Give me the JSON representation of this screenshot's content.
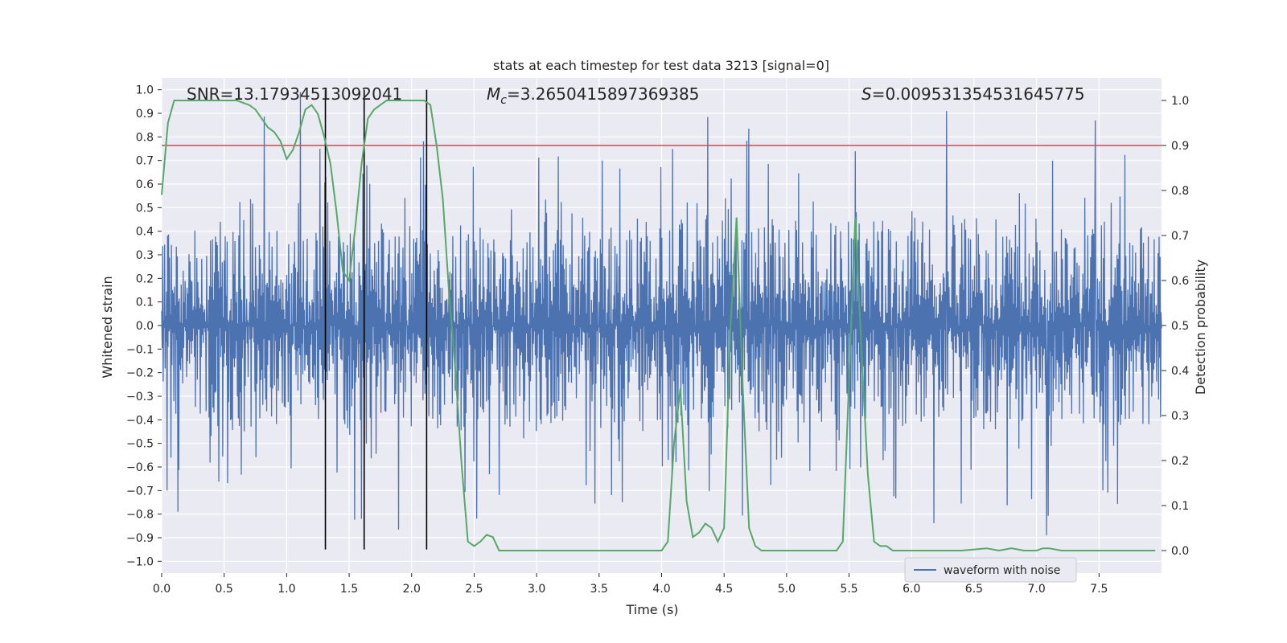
{
  "chart_data": {
    "type": "line",
    "title": "stats at each timestep for test data 3213 [signal=0]",
    "xlabel": "Time (s)",
    "ylabel_left": "Whitened strain",
    "ylabel_right": "Detection probability",
    "xlim": [
      0,
      8.0
    ],
    "ylim_left": [
      -1.05,
      1.05
    ],
    "ylim_right": [
      -0.05,
      1.05
    ],
    "x_ticks": [
      0.0,
      0.5,
      1.0,
      1.5,
      2.0,
      2.5,
      3.0,
      3.5,
      4.0,
      4.5,
      5.0,
      5.5,
      6.0,
      6.5,
      7.0,
      7.5
    ],
    "x_tick_labels": [
      "0.0",
      "0.5",
      "1.0",
      "1.5",
      "2.0",
      "2.5",
      "3.0",
      "3.5",
      "4.0",
      "4.5",
      "5.0",
      "5.5",
      "6.0",
      "6.5",
      "7.0",
      "7.5"
    ],
    "y_ticks_left": [
      1.0,
      0.9,
      0.8,
      0.7,
      0.6,
      0.5,
      0.4,
      0.3,
      0.2,
      0.1,
      0.0,
      -0.1,
      -0.2,
      -0.3,
      -0.4,
      -0.5,
      -0.6,
      -0.7,
      -0.8,
      -0.9,
      -1.0
    ],
    "y_tick_labels_left": [
      "1.0",
      "0.9",
      "0.8",
      "0.7",
      "0.6",
      "0.5",
      "0.4",
      "0.3",
      "0.2",
      "0.1",
      "0.0",
      "−0.1",
      "−0.2",
      "−0.3",
      "−0.4",
      "−0.5",
      "−0.6",
      "−0.7",
      "−0.8",
      "−0.9",
      "−1.0"
    ],
    "y_ticks_right": [
      1.0,
      0.9,
      0.8,
      0.7,
      0.6,
      0.5,
      0.4,
      0.3,
      0.2,
      0.1,
      0.0
    ],
    "y_tick_labels_right": [
      "1.0",
      "0.9",
      "0.8",
      "0.7",
      "0.6",
      "0.5",
      "0.4",
      "0.3",
      "0.2",
      "0.1",
      "0.0"
    ],
    "annotations": {
      "snr": "SNR=13.17934513092041",
      "mc_symbol": "M",
      "mc_sub": "c",
      "mc_value": "=3.2650415897369385",
      "s_symbol": "S",
      "s_value": "=0.009531354531645775"
    },
    "threshold": {
      "axis": "right",
      "value": 0.9,
      "color": "#c44e52"
    },
    "vertical_lines": {
      "x": [
        1.31,
        1.62,
        2.12
      ],
      "color": "#000000"
    },
    "series": [
      {
        "name": "waveform with noise",
        "axis": "left",
        "color": "#4c72b0",
        "envelope": {
          "core_abs": 0.2,
          "typical_max": 0.45,
          "peak_max": 0.97,
          "duration": 8.0,
          "n_samples": 2048
        },
        "notable_peaks": [
          {
            "x": 1.11,
            "y": 0.99
          },
          {
            "x": 1.62,
            "y": -0.93
          },
          {
            "x": 6.28,
            "y": 0.91
          },
          {
            "x": 7.47,
            "y": 0.87
          },
          {
            "x": 7.08,
            "y": -0.89
          },
          {
            "x": 0.13,
            "y": -0.79
          }
        ]
      },
      {
        "name": "detection probability",
        "axis": "right",
        "color": "#55a868",
        "x": [
          0.0,
          0.05,
          0.1,
          0.2,
          0.3,
          0.4,
          0.5,
          0.6,
          0.7,
          0.75,
          0.8,
          0.85,
          0.9,
          0.95,
          1.0,
          1.05,
          1.1,
          1.15,
          1.2,
          1.25,
          1.3,
          1.35,
          1.4,
          1.45,
          1.5,
          1.55,
          1.6,
          1.65,
          1.7,
          1.75,
          1.8,
          1.85,
          1.9,
          1.95,
          2.0,
          2.05,
          2.1,
          2.15,
          2.2,
          2.25,
          2.3,
          2.35,
          2.4,
          2.45,
          2.5,
          2.55,
          2.6,
          2.65,
          2.7,
          2.8,
          3.0,
          3.5,
          3.8,
          3.9,
          4.0,
          4.05,
          4.1,
          4.15,
          4.2,
          4.25,
          4.3,
          4.35,
          4.4,
          4.45,
          4.5,
          4.55,
          4.6,
          4.65,
          4.7,
          4.75,
          4.8,
          4.85,
          4.9,
          5.0,
          5.1,
          5.2,
          5.3,
          5.35,
          5.4,
          5.45,
          5.5,
          5.55,
          5.6,
          5.65,
          5.7,
          5.75,
          5.8,
          5.85,
          5.9,
          6.0,
          6.2,
          6.4,
          6.6,
          6.7,
          6.8,
          6.9,
          7.0,
          7.05,
          7.1,
          7.2,
          7.4,
          7.6,
          7.8,
          7.95
        ],
        "values": [
          0.79,
          0.95,
          1.0,
          1.0,
          1.0,
          1.0,
          1.0,
          1.0,
          0.99,
          0.98,
          0.96,
          0.94,
          0.93,
          0.91,
          0.87,
          0.89,
          0.93,
          0.98,
          0.99,
          0.97,
          0.92,
          0.86,
          0.75,
          0.62,
          0.6,
          0.72,
          0.86,
          0.96,
          0.98,
          0.99,
          1.0,
          1.0,
          1.0,
          1.0,
          1.0,
          1.0,
          1.0,
          0.99,
          0.9,
          0.78,
          0.57,
          0.4,
          0.19,
          0.02,
          0.01,
          0.02,
          0.035,
          0.03,
          0.0,
          0.0,
          0.0,
          0.0,
          0.0,
          0.0,
          0.0,
          0.02,
          0.24,
          0.36,
          0.11,
          0.03,
          0.04,
          0.06,
          0.05,
          0.02,
          0.05,
          0.49,
          0.74,
          0.36,
          0.05,
          0.01,
          0.0,
          0.0,
          0.0,
          0.0,
          0.0,
          0.0,
          0.0,
          0.0,
          0.0,
          0.02,
          0.38,
          0.74,
          0.44,
          0.17,
          0.02,
          0.01,
          0.01,
          0.0,
          0.0,
          0.0,
          0.0,
          0.0,
          0.005,
          0.0,
          0.005,
          0.0,
          0.0,
          0.005,
          0.005,
          0.0,
          0.0,
          0.0,
          0.0,
          0.0
        ]
      }
    ],
    "legend": {
      "placement": "lower-right",
      "entries": [
        "waveform with noise"
      ]
    }
  }
}
